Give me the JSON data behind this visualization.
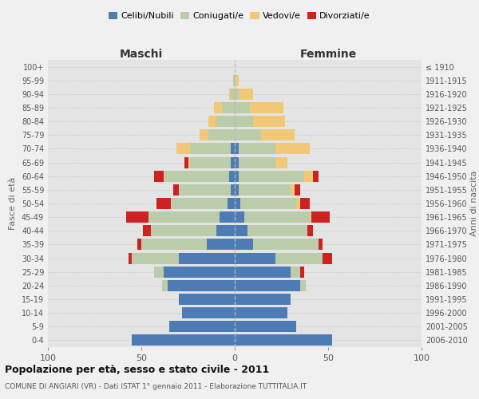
{
  "age_groups": [
    "0-4",
    "5-9",
    "10-14",
    "15-19",
    "20-24",
    "25-29",
    "30-34",
    "35-39",
    "40-44",
    "45-49",
    "50-54",
    "55-59",
    "60-64",
    "65-69",
    "70-74",
    "75-79",
    "80-84",
    "85-89",
    "90-94",
    "95-99",
    "100+"
  ],
  "birth_years": [
    "2006-2010",
    "2001-2005",
    "1996-2000",
    "1991-1995",
    "1986-1990",
    "1981-1985",
    "1976-1980",
    "1971-1975",
    "1966-1970",
    "1961-1965",
    "1956-1960",
    "1951-1955",
    "1946-1950",
    "1941-1945",
    "1936-1940",
    "1931-1935",
    "1926-1930",
    "1921-1925",
    "1916-1920",
    "1911-1915",
    "≤ 1910"
  ],
  "males": {
    "celibi": [
      55,
      35,
      28,
      30,
      36,
      38,
      30,
      15,
      10,
      8,
      4,
      2,
      3,
      2,
      2,
      0,
      0,
      0,
      0,
      0,
      0
    ],
    "coniugati": [
      0,
      0,
      0,
      0,
      3,
      5,
      25,
      35,
      35,
      38,
      30,
      28,
      35,
      22,
      22,
      14,
      10,
      7,
      2,
      1,
      0
    ],
    "vedovi": [
      0,
      0,
      0,
      0,
      0,
      0,
      0,
      0,
      0,
      0,
      0,
      0,
      0,
      1,
      7,
      5,
      4,
      4,
      1,
      0,
      0
    ],
    "divorziati": [
      0,
      0,
      0,
      0,
      0,
      0,
      2,
      2,
      4,
      12,
      8,
      3,
      5,
      2,
      0,
      0,
      0,
      0,
      0,
      0,
      0
    ]
  },
  "females": {
    "nubili": [
      52,
      33,
      28,
      30,
      35,
      30,
      22,
      10,
      7,
      5,
      3,
      2,
      2,
      2,
      2,
      0,
      0,
      0,
      0,
      0,
      0
    ],
    "coniugate": [
      0,
      0,
      0,
      0,
      3,
      5,
      25,
      35,
      32,
      35,
      30,
      28,
      35,
      20,
      20,
      14,
      10,
      8,
      2,
      0,
      0
    ],
    "vedove": [
      0,
      0,
      0,
      0,
      0,
      0,
      0,
      0,
      0,
      1,
      2,
      2,
      5,
      6,
      18,
      18,
      17,
      18,
      8,
      2,
      0
    ],
    "divorziate": [
      0,
      0,
      0,
      0,
      0,
      2,
      5,
      2,
      3,
      10,
      5,
      3,
      3,
      0,
      0,
      0,
      0,
      0,
      0,
      0,
      0
    ]
  },
  "colors": {
    "celibi_nubili": "#4d7cb5",
    "coniugati": "#baccaa",
    "vedovi": "#f0c878",
    "divorziati": "#cc2222"
  },
  "title": "Popolazione per età, sesso e stato civile - 2011",
  "subtitle": "COMUNE DI ANGIARI (VR) - Dati ISTAT 1° gennaio 2011 - Elaborazione TUTTITALIA.IT",
  "xlabel_left": "Maschi",
  "xlabel_right": "Femmine",
  "ylabel_left": "Fasce di età",
  "ylabel_right": "Anni di nascita",
  "xlim": 100,
  "fig_bg": "#f0f0f0",
  "ax_bg": "#e4e4e4"
}
